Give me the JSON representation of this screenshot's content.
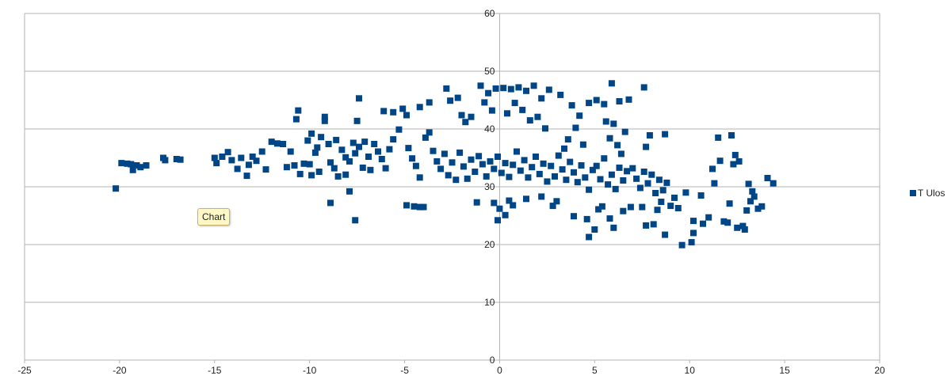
{
  "tooltip": {
    "label": "Chart"
  },
  "colors": {
    "series": "#004586",
    "grid": "#b3b3b3",
    "axis": "#b3b3b3"
  },
  "chart_data": {
    "type": "scatter",
    "title": "",
    "xlabel": "",
    "ylabel": "",
    "xlim": [
      -25,
      20
    ],
    "ylim": [
      0,
      60
    ],
    "xticks": [
      -25,
      -20,
      -15,
      -10,
      -5,
      0,
      5,
      10,
      15,
      20
    ],
    "yticks": [
      0,
      10,
      20,
      30,
      40,
      50,
      60
    ],
    "grid": "horizontal",
    "legend_position": "right",
    "marker": "square",
    "series": [
      {
        "name": "T Ulos",
        "points": [
          [
            -20.2,
            29.7
          ],
          [
            -19.9,
            34.1
          ],
          [
            -19.6,
            34.0
          ],
          [
            -19.4,
            33.9
          ],
          [
            -19.3,
            32.9
          ],
          [
            -19.1,
            33.7
          ],
          [
            -18.9,
            33.4
          ],
          [
            -18.6,
            33.7
          ],
          [
            -17.7,
            35.0
          ],
          [
            -17.6,
            34.6
          ],
          [
            -17.0,
            34.8
          ],
          [
            -16.8,
            34.7
          ],
          [
            -15.0,
            35.0
          ],
          [
            -14.9,
            34.1
          ],
          [
            -14.6,
            35.2
          ],
          [
            -14.3,
            36.0
          ],
          [
            -14.1,
            34.6
          ],
          [
            -13.8,
            33.1
          ],
          [
            -13.6,
            35.0
          ],
          [
            -13.3,
            31.9
          ],
          [
            -13.2,
            33.8
          ],
          [
            -13.0,
            35.2
          ],
          [
            -12.8,
            34.5
          ],
          [
            -12.5,
            36.1
          ],
          [
            -12.3,
            33.0
          ],
          [
            -12.0,
            37.8
          ],
          [
            -11.7,
            37.5
          ],
          [
            -11.4,
            37.4
          ],
          [
            -11.2,
            33.4
          ],
          [
            -11.0,
            36.1
          ],
          [
            -10.8,
            33.7
          ],
          [
            -10.6,
            43.2
          ],
          [
            -10.7,
            41.7
          ],
          [
            -10.5,
            32.2
          ],
          [
            -10.3,
            34.0
          ],
          [
            -10.1,
            38.0
          ],
          [
            -10.0,
            33.9
          ],
          [
            -9.9,
            39.2
          ],
          [
            -9.7,
            35.9
          ],
          [
            -9.5,
            32.6
          ],
          [
            -9.9,
            32.0
          ],
          [
            -9.6,
            36.8
          ],
          [
            -9.4,
            38.6
          ],
          [
            -9.2,
            42.1
          ],
          [
            -9.2,
            41.4
          ],
          [
            -9.0,
            37.4
          ],
          [
            -8.9,
            34.2
          ],
          [
            -8.7,
            33.2
          ],
          [
            -8.6,
            38.1
          ],
          [
            -8.5,
            31.8
          ],
          [
            -8.3,
            36.4
          ],
          [
            -8.1,
            35.1
          ],
          [
            -8.1,
            32.1
          ],
          [
            -7.9,
            34.4
          ],
          [
            -7.7,
            37.6
          ],
          [
            -7.6,
            35.8
          ],
          [
            -7.4,
            36.9
          ],
          [
            -7.2,
            33.3
          ],
          [
            -8.9,
            27.2
          ],
          [
            -7.9,
            29.2
          ],
          [
            -7.6,
            24.2
          ],
          [
            -7.5,
            41.4
          ],
          [
            -7.4,
            45.3
          ],
          [
            -7.1,
            37.8
          ],
          [
            -6.9,
            35.2
          ],
          [
            -6.8,
            32.9
          ],
          [
            -6.6,
            37.4
          ],
          [
            -6.4,
            36.1
          ],
          [
            -6.2,
            34.8
          ],
          [
            -6.0,
            33.2
          ],
          [
            -5.8,
            36.5
          ],
          [
            -5.6,
            38.2
          ],
          [
            -6.1,
            43.1
          ],
          [
            -5.6,
            42.9
          ],
          [
            -5.1,
            43.5
          ],
          [
            -4.9,
            42.4
          ],
          [
            -5.3,
            39.9
          ],
          [
            -4.8,
            36.7
          ],
          [
            -4.6,
            34.9
          ],
          [
            -4.4,
            33.6
          ],
          [
            -4.2,
            31.6
          ],
          [
            -4.9,
            26.8
          ],
          [
            -4.5,
            26.6
          ],
          [
            -4.2,
            26.5
          ],
          [
            -4.0,
            26.5
          ],
          [
            -3.9,
            38.5
          ],
          [
            -3.7,
            39.4
          ],
          [
            -3.5,
            36.2
          ],
          [
            -3.3,
            34.4
          ],
          [
            -3.1,
            33.1
          ],
          [
            -2.9,
            35.7
          ],
          [
            -2.7,
            32.0
          ],
          [
            -2.5,
            34.2
          ],
          [
            -2.3,
            31.2
          ],
          [
            -4.2,
            43.8
          ],
          [
            -3.7,
            44.6
          ],
          [
            -2.8,
            47.0
          ],
          [
            -2.6,
            44.9
          ],
          [
            -2.2,
            45.4
          ],
          [
            -2.0,
            42.4
          ],
          [
            -1.8,
            41.2
          ],
          [
            -1.5,
            42.1
          ],
          [
            -2.1,
            35.9
          ],
          [
            -1.9,
            33.5
          ],
          [
            -1.7,
            31.4
          ],
          [
            -1.5,
            34.7
          ],
          [
            -1.3,
            32.6
          ],
          [
            -1.1,
            35.3
          ],
          [
            -0.9,
            33.9
          ],
          [
            -0.7,
            31.8
          ],
          [
            -0.5,
            34.4
          ],
          [
            -1.0,
            47.5
          ],
          [
            -0.6,
            46.2
          ],
          [
            -0.2,
            47.0
          ],
          [
            0.2,
            47.1
          ],
          [
            0.6,
            46.9
          ],
          [
            -0.8,
            44.6
          ],
          [
            -0.4,
            43.2
          ],
          [
            0.4,
            42.7
          ],
          [
            0.8,
            44.5
          ],
          [
            -0.3,
            27.2
          ],
          [
            0.0,
            26.2
          ],
          [
            0.3,
            25.1
          ],
          [
            0.5,
            27.6
          ],
          [
            0.7,
            26.8
          ],
          [
            -1.2,
            27.3
          ],
          [
            -0.1,
            24.2
          ],
          [
            -0.3,
            33.1
          ],
          [
            -0.1,
            35.2
          ],
          [
            0.1,
            32.4
          ],
          [
            0.3,
            34.1
          ],
          [
            0.5,
            31.7
          ],
          [
            0.7,
            33.8
          ],
          [
            0.9,
            36.1
          ],
          [
            1.1,
            32.8
          ],
          [
            1.3,
            34.6
          ],
          [
            1.0,
            47.2
          ],
          [
            1.4,
            46.6
          ],
          [
            1.8,
            47.5
          ],
          [
            2.2,
            45.3
          ],
          [
            2.6,
            46.8
          ],
          [
            1.2,
            43.3
          ],
          [
            1.6,
            41.5
          ],
          [
            2.0,
            42.1
          ],
          [
            2.4,
            40.1
          ],
          [
            1.5,
            31.6
          ],
          [
            1.7,
            33.4
          ],
          [
            1.9,
            35.2
          ],
          [
            2.1,
            32.2
          ],
          [
            2.3,
            34.0
          ],
          [
            2.5,
            30.9
          ],
          [
            2.7,
            33.6
          ],
          [
            2.9,
            31.8
          ],
          [
            3.1,
            35.4
          ],
          [
            1.4,
            27.9
          ],
          [
            2.2,
            28.3
          ],
          [
            2.8,
            26.7
          ],
          [
            3.0,
            27.5
          ],
          [
            3.3,
            33.0
          ],
          [
            3.5,
            31.2
          ],
          [
            3.7,
            34.3
          ],
          [
            3.9,
            32.5
          ],
          [
            4.1,
            30.8
          ],
          [
            4.3,
            33.7
          ],
          [
            4.5,
            31.6
          ],
          [
            4.7,
            29.5
          ],
          [
            4.9,
            32.9
          ],
          [
            3.6,
            38.2
          ],
          [
            3.2,
            45.9
          ],
          [
            3.8,
            44.1
          ],
          [
            4.0,
            40.2
          ],
          [
            4.2,
            42.3
          ],
          [
            4.4,
            37.3
          ],
          [
            3.4,
            36.6
          ],
          [
            3.9,
            24.9
          ],
          [
            4.6,
            24.4
          ],
          [
            4.7,
            21.3
          ],
          [
            5.0,
            22.6
          ],
          [
            5.2,
            26.1
          ],
          [
            5.1,
            33.6
          ],
          [
            5.3,
            31.3
          ],
          [
            5.5,
            34.9
          ],
          [
            5.7,
            30.4
          ],
          [
            5.9,
            32.1
          ],
          [
            6.1,
            29.6
          ],
          [
            6.3,
            33.3
          ],
          [
            6.5,
            31.1
          ],
          [
            6.7,
            32.7
          ],
          [
            4.7,
            44.5
          ],
          [
            5.1,
            45.0
          ],
          [
            5.5,
            44.3
          ],
          [
            5.9,
            47.9
          ],
          [
            6.3,
            44.8
          ],
          [
            6.8,
            45.1
          ],
          [
            7.6,
            47.2
          ],
          [
            5.6,
            41.3
          ],
          [
            6.0,
            40.9
          ],
          [
            5.8,
            38.4
          ],
          [
            6.2,
            37.2
          ],
          [
            6.6,
            39.5
          ],
          [
            6.4,
            35.7
          ],
          [
            5.4,
            26.6
          ],
          [
            5.8,
            24.5
          ],
          [
            6.0,
            22.9
          ],
          [
            6.5,
            25.8
          ],
          [
            6.9,
            26.5
          ],
          [
            7.0,
            33.2
          ],
          [
            7.2,
            31.4
          ],
          [
            7.4,
            29.8
          ],
          [
            7.6,
            32.6
          ],
          [
            7.8,
            30.6
          ],
          [
            8.0,
            32.1
          ],
          [
            8.2,
            28.9
          ],
          [
            8.4,
            31.2
          ],
          [
            8.6,
            29.4
          ],
          [
            7.7,
            36.9
          ],
          [
            7.9,
            38.9
          ],
          [
            8.7,
            39.1
          ],
          [
            7.5,
            26.5
          ],
          [
            7.7,
            23.3
          ],
          [
            8.1,
            23.5
          ],
          [
            8.3,
            26.0
          ],
          [
            8.5,
            27.4
          ],
          [
            8.7,
            21.7
          ],
          [
            8.8,
            30.7
          ],
          [
            9.0,
            26.7
          ],
          [
            9.2,
            28.1
          ],
          [
            9.4,
            26.3
          ],
          [
            9.6,
            19.9
          ],
          [
            9.8,
            29.0
          ],
          [
            10.1,
            20.4
          ],
          [
            10.2,
            24.1
          ],
          [
            10.6,
            28.5
          ],
          [
            10.2,
            22.0
          ],
          [
            10.7,
            23.6
          ],
          [
            11.0,
            24.7
          ],
          [
            11.2,
            33.1
          ],
          [
            11.3,
            30.6
          ],
          [
            11.5,
            38.5
          ],
          [
            11.6,
            34.5
          ],
          [
            11.8,
            24.0
          ],
          [
            12.0,
            23.8
          ],
          [
            12.2,
            38.9
          ],
          [
            12.4,
            35.5
          ],
          [
            12.3,
            33.9
          ],
          [
            12.6,
            34.4
          ],
          [
            12.8,
            23.2
          ],
          [
            12.9,
            22.6
          ],
          [
            13.1,
            30.5
          ],
          [
            13.3,
            29.2
          ],
          [
            13.6,
            26.2
          ],
          [
            12.1,
            27.1
          ],
          [
            12.5,
            22.9
          ],
          [
            13.0,
            25.9
          ],
          [
            13.4,
            28.3
          ],
          [
            13.8,
            26.6
          ],
          [
            14.1,
            31.5
          ],
          [
            14.4,
            30.6
          ],
          [
            13.2,
            27.5
          ]
        ]
      }
    ]
  }
}
